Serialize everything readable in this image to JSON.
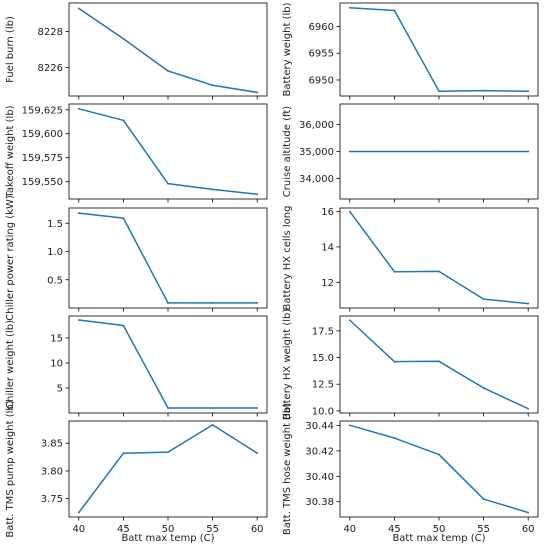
{
  "chart_data": [
    {
      "type": "line",
      "x": [
        40,
        45,
        50,
        55,
        60
      ],
      "series": [
        {
          "values": [
            8229.3,
            8227.6,
            8225.8,
            8225.0,
            8224.6
          ]
        }
      ],
      "ylabel": "Fuel burn (lb)",
      "xlabel": "",
      "ylim": [
        8224.4,
        8229.6
      ],
      "yticks": [
        8226,
        8228
      ],
      "yticklabels": [
        "8226",
        "8228"
      ],
      "xticklabels": [],
      "color": "#1f77b4"
    },
    {
      "type": "line",
      "x": [
        40,
        45,
        50,
        55,
        60
      ],
      "series": [
        {
          "values": [
            6963.5,
            6963.0,
            6947.9,
            6948.0,
            6947.9
          ]
        }
      ],
      "ylabel": "Battery weight (lb)",
      "xlabel": "",
      "ylim": [
        6947.0,
        6964.4
      ],
      "yticks": [
        6950,
        6955,
        6960
      ],
      "yticklabels": [
        "6950",
        "6955",
        "6960"
      ],
      "xticklabels": [],
      "color": "#1f77b4"
    },
    {
      "type": "line",
      "x": [
        40,
        45,
        50,
        55,
        60
      ],
      "series": [
        {
          "values": [
            159626,
            159614,
            159548,
            159542,
            159537
          ]
        }
      ],
      "ylabel": "Takeoff weight (lb)",
      "xlabel": "",
      "ylim": [
        159532,
        159631
      ],
      "yticks": [
        159550,
        159575,
        159600,
        159625
      ],
      "yticklabels": [
        "159,550",
        "159,575",
        "159,600",
        "159,625"
      ],
      "xticklabels": [],
      "color": "#1f77b4"
    },
    {
      "type": "line",
      "x": [
        40,
        45,
        50,
        55,
        60
      ],
      "series": [
        {
          "values": [
            35000,
            35000,
            35000,
            35000,
            35000
          ]
        }
      ],
      "ylabel": "Cruise altitude (ft)",
      "xlabel": "",
      "ylim": [
        33250,
        36750
      ],
      "yticks": [
        34000,
        35000,
        36000
      ],
      "yticklabels": [
        "34,000",
        "35,000",
        "36,000"
      ],
      "xticklabels": [],
      "color": "#1f77b4"
    },
    {
      "type": "line",
      "x": [
        40,
        45,
        50,
        55,
        60
      ],
      "series": [
        {
          "values": [
            1.68,
            1.59,
            0.09,
            0.09,
            0.09
          ]
        }
      ],
      "ylabel": "Chiller power rating (kW)",
      "xlabel": "",
      "ylim": [
        0.0,
        1.77
      ],
      "yticks": [
        0.5,
        1.0,
        1.5
      ],
      "yticklabels": [
        "0.5",
        "1.0",
        "1.5"
      ],
      "xticklabels": [],
      "color": "#1f77b4"
    },
    {
      "type": "line",
      "x": [
        40,
        45,
        50,
        55,
        60
      ],
      "series": [
        {
          "values": [
            16.0,
            12.6,
            12.62,
            11.05,
            10.8
          ]
        }
      ],
      "ylabel": "Battery HX cells long",
      "xlabel": "",
      "ylim": [
        10.55,
        16.2
      ],
      "yticks": [
        12,
        14,
        16
      ],
      "yticklabels": [
        "12",
        "14",
        "16"
      ],
      "xticklabels": [],
      "color": "#1f77b4"
    },
    {
      "type": "line",
      "x": [
        40,
        45,
        50,
        55,
        60
      ],
      "series": [
        {
          "values": [
            18.6,
            17.5,
            1.0,
            1.0,
            1.0
          ]
        }
      ],
      "ylabel": "Chiller weight (lb)",
      "xlabel": "",
      "ylim": [
        0.0,
        19.4
      ],
      "yticks": [
        5,
        10,
        15
      ],
      "yticklabels": [
        "5",
        "10",
        "15"
      ],
      "xticklabels": [],
      "color": "#1f77b4"
    },
    {
      "type": "line",
      "x": [
        40,
        45,
        50,
        55,
        60
      ],
      "series": [
        {
          "values": [
            18.5,
            14.62,
            14.65,
            12.15,
            10.2
          ]
        }
      ],
      "ylabel": "Battery HX weight (lb)",
      "xlabel": "",
      "ylim": [
        9.8,
        18.9
      ],
      "yticks": [
        10.0,
        12.5,
        15.0,
        17.5
      ],
      "yticklabels": [
        "10.0",
        "12.5",
        "15.0",
        "17.5"
      ],
      "xticklabels": [],
      "color": "#1f77b4"
    },
    {
      "type": "line",
      "x": [
        40,
        45,
        50,
        55,
        60
      ],
      "series": [
        {
          "values": [
            3.725,
            3.832,
            3.834,
            3.883,
            3.832
          ]
        }
      ],
      "ylabel": "Batt. TMS pump weight (lb)",
      "xlabel": "Batt max temp (C)",
      "ylim": [
        3.717,
        3.89
      ],
      "yticks": [
        3.75,
        3.8,
        3.85
      ],
      "yticklabels": [
        "3.75",
        "3.80",
        "3.85"
      ],
      "xticklabels": [
        "40",
        "45",
        "50",
        "55",
        "60"
      ],
      "color": "#1f77b4"
    },
    {
      "type": "line",
      "x": [
        40,
        45,
        50,
        55,
        60
      ],
      "series": [
        {
          "values": [
            30.4401,
            30.4301,
            30.4171,
            30.3821,
            30.3715
          ]
        }
      ],
      "ylabel": "Batt. TMS hose weight (lb)",
      "xlabel": "Batt max temp (C)",
      "ylim": [
        30.368,
        30.4435
      ],
      "yticks": [
        30.38,
        30.4,
        30.42,
        30.44
      ],
      "yticklabels": [
        "30.38",
        "30.40",
        "30.42",
        "30.44"
      ],
      "xticklabels": [
        "40",
        "45",
        "50",
        "55",
        "60"
      ],
      "color": "#1f77b4"
    }
  ]
}
